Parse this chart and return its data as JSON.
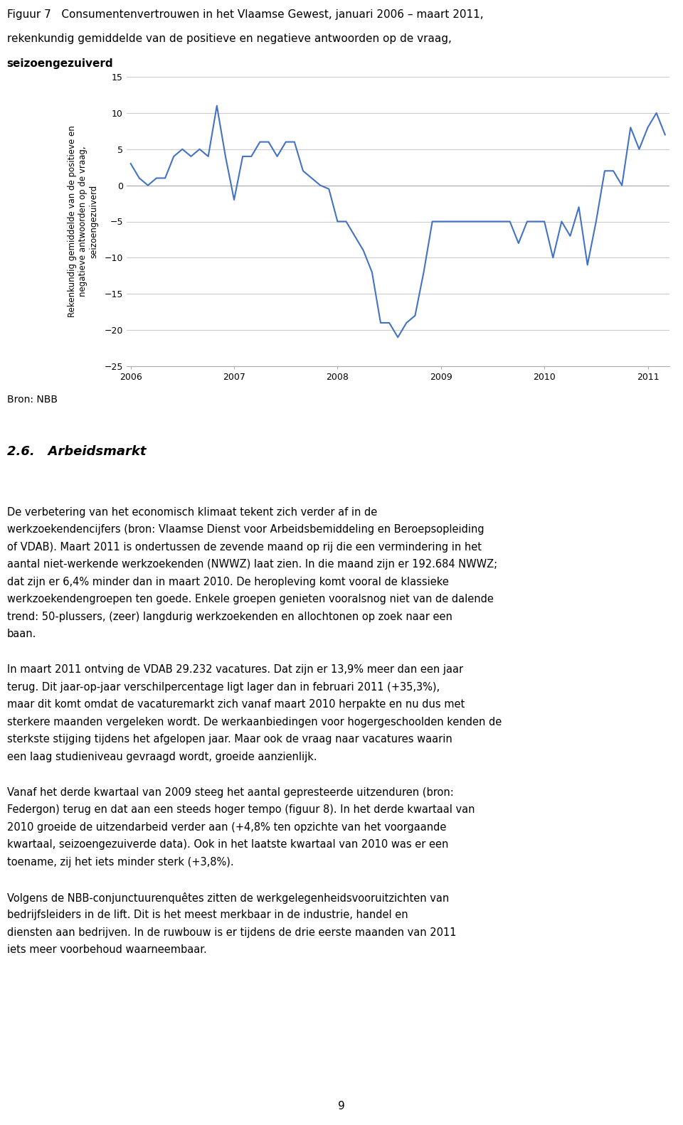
{
  "title_line1": "Figuur 7   Consumentenvertrouwen in het Vlaamse Gewest, januari 2006 – maart 2011,",
  "title_line2": "rekenkundig gemiddelde van de positieve en negatieve antwoorden op de vraag,",
  "title_line3": "seizoengezuiverd",
  "ylabel_lines": [
    "Rekenkundig gemiddelde van de positieve en",
    "negatieve antwoorden op de vraag,",
    "seizoengezuiverd"
  ],
  "source": "Bron: NBB",
  "section_title": "2.6.   Arbeidsmarkt",
  "body_paragraphs": [
    "De verbetering van het economisch klimaat tekent zich verder af in de werkzoekendencijfers (bron: Vlaamse Dienst voor Arbeidsbemiddeling en Beroepsopleiding of VDAB). Maart 2011 is ondertussen de zevende maand op rij die een vermindering in het aantal niet-werkende werkzoekenden (NWWZ) laat zien. In die maand zijn er 192.684 NWWZ; dat zijn er 6,4% minder dan in maart 2010. De heropleving komt vooral de klassieke werkzoekendengroepen ten goede. Enkele groepen genieten vooralsnog niet van de dalende trend: 50-plussers, (zeer) langdurig werkzoekenden en allochtonen op zoek naar een baan.",
    "In maart 2011 ontving de VDAB 29.232 vacatures. Dat zijn er 13,9% meer dan een jaar terug. Dit jaar-op-jaar verschilpercentage ligt lager dan in februari 2011 (+35,3%), maar dit komt omdat de vacaturemarkt zich vanaf maart 2010 herpakte en nu dus met sterkere maanden vergeleken wordt. De werkaanbiedingen voor hogergeschoolden kenden de sterkste stijging tijdens het afgelopen jaar. Maar ook de vraag naar vacatures waarin een laag studieniveau gevraagd wordt, groeide aanzienlijk.",
    "Vanaf het derde kwartaal van 2009 steeg het aantal gepresteerde uitzenduren (bron: Federgon) terug en dat aan een steeds hoger tempo (figuur 8). In het derde kwartaal van 2010 groeide de uitzendarbeid verder aan (+4,8% ten opzichte van het voorgaande kwartaal, seizoengezuiverde data). Ook in het laatste kwartaal van 2010 was er een toename, zij het iets minder sterk (+3,8%).",
    "Volgens de NBB-conjunctuurenquêtes zitten de werkgelegenheidsvooruitzichten van bedrijfsleiders in de lift. Dit is het meest merkbaar in de industrie, handel en diensten aan bedrijven. In de ruwbouw is er tijdens de drie eerste maanden van 2011 iets meer voorbehoud waarneembaar."
  ],
  "page_number": "9",
  "line_color": "#4472C4",
  "line_width": 1.5,
  "ylim": [
    -25,
    15
  ],
  "yticks": [
    -25,
    -20,
    -15,
    -10,
    -5,
    0,
    5,
    10,
    15
  ],
  "grid_color": "#CCCCCC",
  "x_values": [
    0,
    1,
    2,
    3,
    4,
    5,
    6,
    7,
    8,
    9,
    10,
    11,
    12,
    13,
    14,
    15,
    16,
    17,
    18,
    19,
    20,
    21,
    22,
    23,
    24,
    25,
    26,
    27,
    28,
    29,
    30,
    31,
    32,
    33,
    34,
    35,
    36,
    37,
    38,
    39,
    40,
    41,
    42,
    43,
    44,
    45,
    46,
    47,
    48,
    49,
    50,
    51,
    52,
    53,
    54,
    55,
    56,
    57,
    58,
    59,
    60,
    61,
    62
  ],
  "y_values": [
    3,
    1,
    0,
    1,
    1,
    4,
    5,
    4,
    5,
    4,
    11,
    4,
    -2,
    4,
    4,
    6,
    6,
    4,
    6,
    6,
    2,
    1,
    0,
    -0.5,
    -5,
    -5,
    -7,
    -9,
    -12,
    -19,
    -19,
    -21,
    -19,
    -18,
    -12,
    -5,
    -5,
    -5,
    -5,
    -5,
    -5,
    -5,
    -5,
    -5,
    -5,
    -8,
    -5,
    -5,
    -5,
    -10,
    -5,
    -7,
    -3,
    -11,
    -5,
    2,
    2,
    0,
    8,
    5,
    8,
    10,
    7
  ],
  "x_tick_positions": [
    0,
    12,
    24,
    36,
    48,
    60
  ],
  "x_tick_labels": [
    "2006",
    "2007",
    "2008",
    "2009",
    "2010",
    "2011"
  ]
}
